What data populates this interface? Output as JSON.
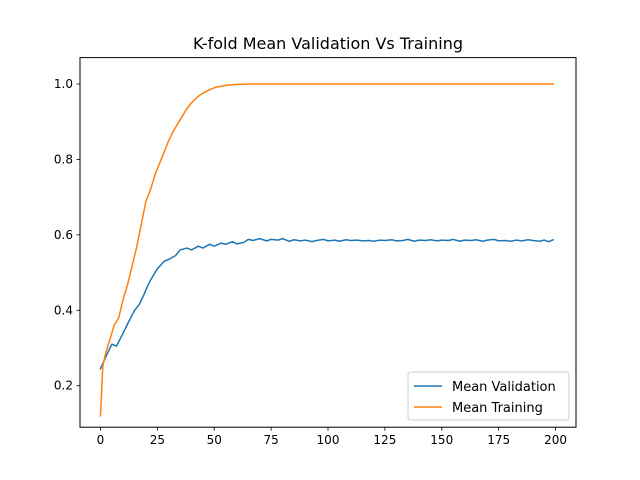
{
  "chart_data": {
    "type": "line",
    "title": "K-fold Mean Validation Vs Training",
    "xlabel": "",
    "ylabel": "",
    "xlim": [
      -9,
      209
    ],
    "ylim": [
      0.09,
      1.07
    ],
    "xticks": [
      0,
      25,
      50,
      75,
      100,
      125,
      150,
      175,
      200
    ],
    "yticks": [
      0.2,
      0.4,
      0.6,
      0.8,
      1.0
    ],
    "ytick_labels": [
      "0.2",
      "0.4",
      "0.6",
      "0.8",
      "1.0"
    ],
    "grid": false,
    "legend_position": "lower-right",
    "series": [
      {
        "name": "Mean Validation",
        "color": "#1f77b4",
        "x": [
          0,
          3,
          5,
          7,
          10,
          12,
          15,
          17,
          19,
          20,
          22,
          25,
          28,
          30,
          33,
          35,
          38,
          40,
          43,
          45,
          48,
          50,
          53,
          55,
          58,
          60,
          63,
          65,
          67,
          70,
          73,
          75,
          78,
          80,
          83,
          85,
          88,
          90,
          93,
          95,
          98,
          100,
          103,
          105,
          108,
          110,
          113,
          115,
          118,
          120,
          123,
          125,
          128,
          130,
          133,
          135,
          138,
          140,
          143,
          145,
          148,
          150,
          153,
          155,
          158,
          160,
          163,
          165,
          168,
          170,
          173,
          175,
          178,
          180,
          183,
          185,
          188,
          190,
          193,
          195,
          197,
          199
        ],
        "y": [
          0.245,
          0.285,
          0.31,
          0.305,
          0.34,
          0.365,
          0.4,
          0.415,
          0.44,
          0.455,
          0.48,
          0.51,
          0.53,
          0.535,
          0.545,
          0.56,
          0.565,
          0.56,
          0.57,
          0.565,
          0.575,
          0.57,
          0.578,
          0.575,
          0.582,
          0.576,
          0.58,
          0.588,
          0.585,
          0.59,
          0.584,
          0.588,
          0.586,
          0.59,
          0.583,
          0.587,
          0.584,
          0.586,
          0.582,
          0.585,
          0.588,
          0.584,
          0.586,
          0.583,
          0.587,
          0.585,
          0.586,
          0.584,
          0.585,
          0.583,
          0.586,
          0.585,
          0.587,
          0.584,
          0.585,
          0.588,
          0.583,
          0.586,
          0.585,
          0.587,
          0.584,
          0.586,
          0.585,
          0.588,
          0.583,
          0.586,
          0.585,
          0.587,
          0.583,
          0.586,
          0.588,
          0.584,
          0.585,
          0.583,
          0.586,
          0.584,
          0.587,
          0.585,
          0.583,
          0.586,
          0.582,
          0.587
        ]
      },
      {
        "name": "Mean Training",
        "color": "#ff7f0e",
        "x": [
          0,
          1,
          2,
          3,
          4,
          5,
          6,
          8,
          10,
          12,
          14,
          16,
          18,
          19,
          20,
          22,
          24,
          26,
          28,
          30,
          32,
          34,
          36,
          38,
          40,
          42,
          44,
          46,
          48,
          50,
          52,
          54,
          56,
          58,
          60,
          63,
          66,
          70,
          75,
          80,
          90,
          100,
          125,
          150,
          175,
          199
        ],
        "y": [
          0.12,
          0.25,
          0.28,
          0.3,
          0.32,
          0.34,
          0.36,
          0.38,
          0.43,
          0.47,
          0.52,
          0.57,
          0.63,
          0.66,
          0.69,
          0.72,
          0.76,
          0.79,
          0.82,
          0.85,
          0.875,
          0.895,
          0.915,
          0.935,
          0.95,
          0.962,
          0.972,
          0.979,
          0.985,
          0.99,
          0.993,
          0.995,
          0.997,
          0.998,
          0.999,
          0.9995,
          1.0,
          1.0,
          1.0,
          1.0,
          1.0,
          1.0,
          1.0,
          1.0,
          1.0,
          1.0
        ]
      }
    ]
  }
}
